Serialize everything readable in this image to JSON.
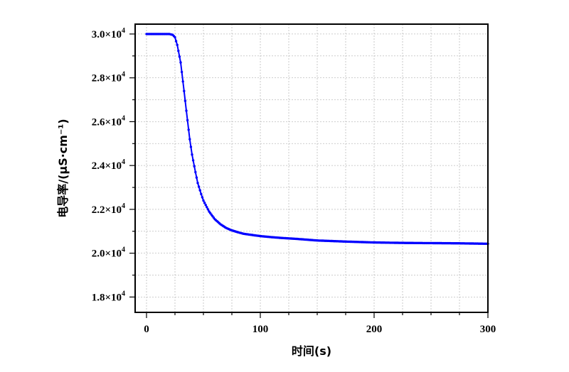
{
  "chart_data": {
    "type": "scatter",
    "title": "",
    "xlabel": "时间(s)",
    "ylabel": "电导率/(μS·cm⁻¹)",
    "xlim": [
      -10,
      300
    ],
    "ylim": [
      17300,
      30450
    ],
    "x_ticks": [
      0,
      100,
      200,
      300
    ],
    "y_ticks": [
      {
        "value": 18000,
        "mantissa": "1.8×10",
        "exp": "4"
      },
      {
        "value": 20000,
        "mantissa": "2.0×10",
        "exp": "4"
      },
      {
        "value": 22000,
        "mantissa": "2.2×10",
        "exp": "4"
      },
      {
        "value": 24000,
        "mantissa": "2.4×10",
        "exp": "4"
      },
      {
        "value": 26000,
        "mantissa": "2.6×10",
        "exp": "4"
      },
      {
        "value": 28000,
        "mantissa": "2.8×10",
        "exp": "4"
      },
      {
        "value": 30000,
        "mantissa": "3.0×10",
        "exp": "4"
      }
    ],
    "grid": true,
    "series": [
      {
        "color": "#0000ff",
        "x": [
          0,
          5,
          10,
          15,
          20,
          23,
          25,
          27,
          30,
          33,
          35,
          38,
          40,
          43,
          45,
          48,
          50,
          53,
          55,
          60,
          65,
          70,
          75,
          80,
          85,
          90,
          100,
          110,
          120,
          130,
          150,
          175,
          200,
          225,
          250,
          275,
          300
        ],
        "y": [
          30000,
          30000,
          30000,
          30000,
          30000,
          29960,
          29850,
          29500,
          28700,
          27400,
          26500,
          25200,
          24500,
          23700,
          23200,
          22700,
          22400,
          22100,
          21900,
          21550,
          21320,
          21150,
          21040,
          20960,
          20890,
          20850,
          20780,
          20730,
          20690,
          20660,
          20580,
          20530,
          20490,
          20470,
          20460,
          20450,
          20430
        ]
      }
    ]
  }
}
